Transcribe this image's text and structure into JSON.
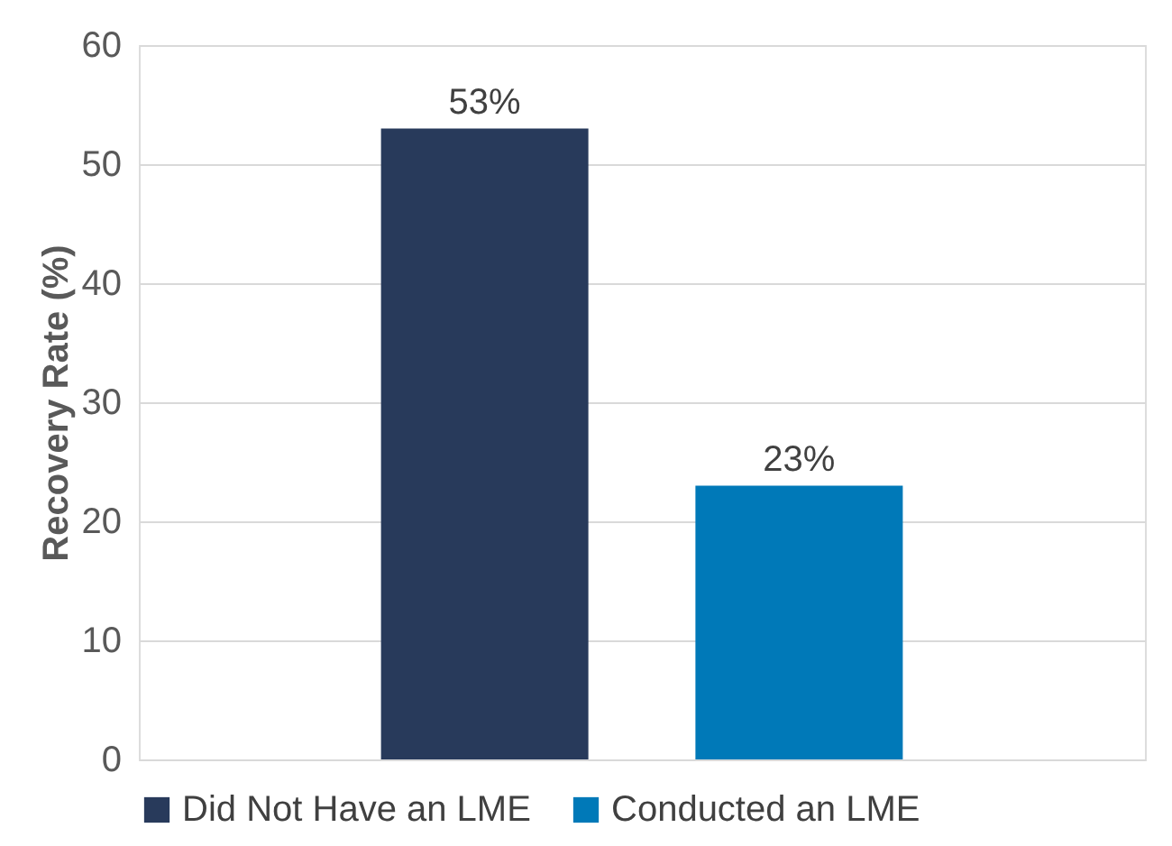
{
  "chart_data": {
    "type": "bar",
    "ylabel": "Recovery Rate (%)",
    "categories": [
      null
    ],
    "series": [
      {
        "name": "Did Not Have an LME",
        "color": "#283a5b",
        "values": [
          53
        ],
        "value_labels": [
          "53%"
        ]
      },
      {
        "name": "Conducted an LME",
        "color": "#0079b8",
        "values": [
          23
        ],
        "value_labels": [
          "23%"
        ]
      }
    ],
    "ylim": [
      0,
      60
    ],
    "yticks": [
      0,
      10,
      20,
      30,
      40,
      50,
      60
    ],
    "grid": "y",
    "legend": "bottom",
    "tick_labels": "y"
  }
}
